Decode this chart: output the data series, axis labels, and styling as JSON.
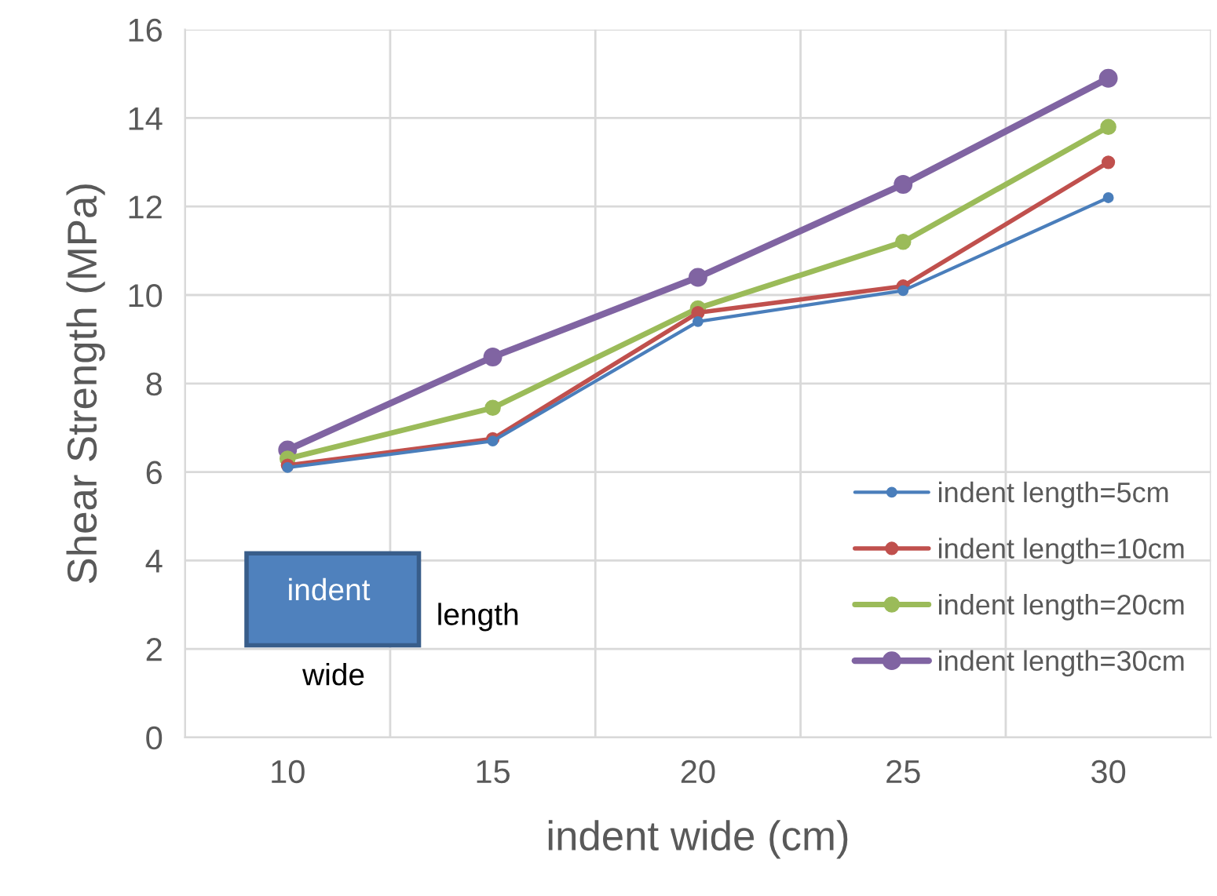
{
  "chart_data": {
    "type": "line",
    "xlabel": "indent wide (cm)",
    "ylabel": "Shear Strength (MPa)",
    "categories": [
      "10",
      "15",
      "20",
      "25",
      "30"
    ],
    "series": [
      {
        "name": "indent length=5cm",
        "color": "#4a7ebb",
        "values": [
          6.1,
          6.7,
          9.4,
          10.1,
          12.2
        ]
      },
      {
        "name": "indent length=10cm",
        "color": "#c0504d",
        "values": [
          6.15,
          6.75,
          9.6,
          10.2,
          13.0
        ]
      },
      {
        "name": "indent length=20cm",
        "color": "#9bbb59",
        "values": [
          6.3,
          7.45,
          9.7,
          11.2,
          13.8
        ]
      },
      {
        "name": "indent length=30cm",
        "color": "#8064a2",
        "values": [
          6.5,
          8.6,
          10.4,
          12.5,
          14.9
        ]
      }
    ],
    "ylim": [
      0,
      16
    ],
    "yticks": [
      0,
      2,
      4,
      6,
      8,
      10,
      12,
      14,
      16
    ],
    "grid": true,
    "legend": "bottom right",
    "marker": "circle",
    "line_style": "solid",
    "annotations": [
      "indent",
      "length",
      "wide"
    ]
  }
}
